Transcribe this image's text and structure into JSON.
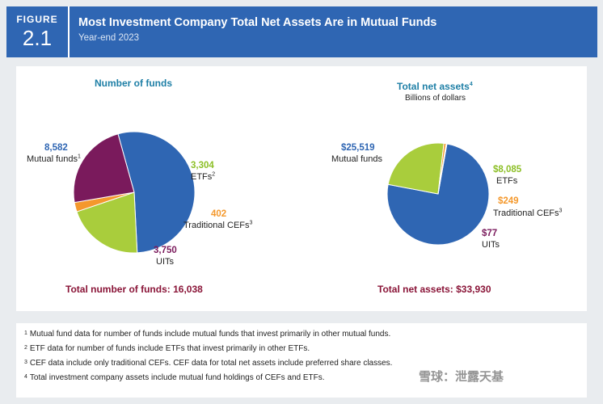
{
  "header": {
    "figure_label": "FIGURE",
    "figure_number": "2.1",
    "title": "Most Investment Company Total Net Assets Are in Mutual Funds",
    "subtitle": "Year-end 2023"
  },
  "colors": {
    "mutual_funds": "#2f66b3",
    "etfs": "#a9cd3c",
    "traditional_cefs": "#f4982c",
    "uits": "#7a1a5c",
    "total_text": "#8a1538",
    "heading": "#1e7fa6"
  },
  "chart_data": [
    {
      "type": "pie",
      "title": "Number of funds",
      "categories": [
        "Mutual funds",
        "ETFs",
        "Traditional CEFs",
        "UITs"
      ],
      "values": [
        8582,
        3304,
        402,
        3750
      ],
      "value_labels": [
        "8,582",
        "3,304",
        "402",
        "3,750"
      ],
      "footnote_marks": [
        "1",
        "2",
        "3",
        ""
      ],
      "total_label": "Total number of funds: 16,038"
    },
    {
      "type": "pie",
      "title": "Total net assets",
      "title_footnote": "4",
      "subtitle": "Billions of dollars",
      "categories": [
        "Mutual funds",
        "ETFs",
        "Traditional CEFs",
        "UITs"
      ],
      "values": [
        25519,
        8085,
        249,
        77
      ],
      "value_labels": [
        "$25,519",
        "$8,085",
        "$249",
        "$77"
      ],
      "footnote_marks": [
        "",
        "",
        "3",
        ""
      ],
      "total_label": "Total net assets: $33,930"
    }
  ],
  "notes": [
    {
      "num": "1",
      "text": "Mutual fund data for number of funds include mutual funds that invest primarily in other mutual funds."
    },
    {
      "num": "2",
      "text": "ETF data for number of funds include ETFs that invest primarily in other ETFs."
    },
    {
      "num": "3",
      "text": "CEF data include only traditional CEFs. CEF data for total net assets include preferred share classes."
    },
    {
      "num": "4",
      "text": "Total investment company assets include mutual fund holdings of CEFs and ETFs."
    }
  ],
  "watermark": "雪球：泄露天基"
}
